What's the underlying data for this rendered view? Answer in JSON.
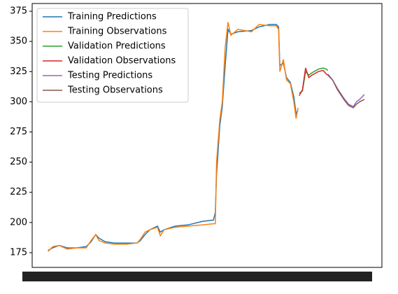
{
  "chart_data": {
    "type": "line",
    "ylim": [
      162.8,
      381.4
    ],
    "yticks": [
      175,
      200,
      225,
      250,
      275,
      300,
      325,
      350,
      375
    ],
    "xlim": [
      -5,
      105
    ],
    "legend": "upper left",
    "series": [
      {
        "name": "Training Predictions",
        "color": "#1f77b4",
        "x": [
          0,
          1.5,
          3.5,
          6,
          9,
          12,
          13.5,
          15,
          16,
          18,
          21,
          24.5,
          28,
          29,
          30.5,
          32,
          34.4,
          35.3,
          36.5,
          40,
          44,
          48.7,
          52,
          52.6,
          53,
          54,
          54.8,
          55.7,
          56.6,
          57.5,
          59.7,
          64,
          66.3,
          69.6,
          71.8,
          72.5,
          72.9,
          74,
          75,
          76.2,
          77.3,
          78,
          78.6
        ],
        "values": [
          177,
          179,
          181,
          179,
          179,
          180,
          184,
          190,
          187,
          184,
          183,
          183,
          183,
          185,
          190,
          194,
          197,
          192,
          194,
          197,
          198,
          201,
          202,
          208,
          240,
          280,
          296,
          330,
          360,
          356,
          358,
          359,
          362,
          364,
          364,
          362,
          330,
          332,
          320,
          316,
          304,
          290,
          293
        ]
      },
      {
        "name": "Training Observations",
        "color": "#ff7f0e",
        "x": [
          0,
          1.5,
          3.5,
          6,
          9,
          12,
          13.5,
          15,
          16,
          18,
          21,
          24.5,
          28,
          29,
          30.5,
          32,
          34.4,
          35.3,
          36.5,
          40,
          44,
          48.7,
          52,
          52.6,
          53,
          54,
          54.8,
          55.7,
          56.6,
          57.5,
          59.7,
          64,
          66.3,
          69.6,
          71.8,
          72.5,
          72.9,
          74,
          75,
          76.2,
          77.3,
          78,
          78.6
        ],
        "values": [
          176,
          180,
          181,
          178,
          179,
          179,
          185,
          190,
          185,
          183,
          182,
          182,
          183,
          186,
          192,
          194,
          196,
          189,
          194,
          196,
          197,
          198,
          199,
          199,
          250,
          285,
          300,
          345,
          366,
          355,
          360,
          358,
          364,
          363,
          363,
          360,
          325,
          335,
          318,
          315,
          300,
          286,
          295
        ]
      },
      {
        "name": "Validation Predictions",
        "color": "#2ca02c",
        "x": [
          79,
          80,
          81,
          82,
          83,
          85,
          86.5,
          87.5,
          88
        ],
        "values": [
          307,
          309,
          325,
          322,
          324,
          327,
          328,
          327,
          326
        ]
      },
      {
        "name": "Validation Observations",
        "color": "#d62728",
        "x": [
          79,
          80,
          81,
          82,
          83,
          85,
          86.5,
          87.5,
          88
        ],
        "values": [
          305,
          310,
          328,
          320,
          322,
          325,
          326,
          323,
          322
        ]
      },
      {
        "name": "Testing Predictions",
        "color": "#9467bd",
        "x": [
          88,
          89.5,
          91,
          93,
          94.5,
          96,
          97,
          98,
          99.5
        ],
        "values": [
          323,
          318,
          311,
          303,
          298,
          296,
          300,
          302,
          306
        ]
      },
      {
        "name": "Testing Observations",
        "color": "#8c564b",
        "x": [
          88,
          89.5,
          91,
          93,
          94.5,
          96,
          97,
          98,
          99.5
        ],
        "values": [
          322,
          318,
          310,
          302,
          297,
          295,
          298,
          300,
          302
        ]
      }
    ]
  }
}
